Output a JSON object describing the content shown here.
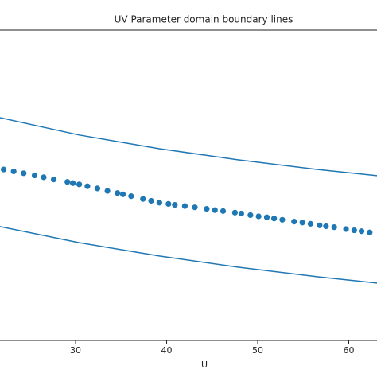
{
  "chart_data": {
    "type": "line",
    "title": "UV Parameter domain boundary lines",
    "xlabel": "U",
    "xlim": [
      21.7,
      63.1
    ],
    "ylim": [
      0,
      1
    ],
    "xticks": [
      30,
      40,
      50,
      60
    ],
    "grid": false,
    "series": [
      {
        "style": "line",
        "color": "#1f77b4",
        "x": [
          21.7,
          30.4,
          39.2,
          47.9,
          56.6,
          63.1
        ],
        "values": [
          0.718,
          0.662,
          0.618,
          0.582,
          0.551,
          0.531
        ]
      },
      {
        "style": "line",
        "color": "#1f77b4",
        "x": [
          21.7,
          30.4,
          39.2,
          47.9,
          56.6,
          63.1
        ],
        "values": [
          0.367,
          0.315,
          0.272,
          0.236,
          0.205,
          0.185
        ]
      },
      {
        "style": "marker",
        "color": "#1f77b4",
        "x": [
          22.1,
          23.2,
          24.3,
          25.5,
          26.5,
          27.6,
          29.1,
          29.7,
          30.4,
          31.3,
          32.4,
          33.5,
          34.6,
          35.2,
          36.1,
          37.4,
          38.3,
          39.2,
          40.2,
          40.9,
          42.0,
          43.1,
          44.4,
          45.3,
          46.2,
          47.5,
          48.2,
          49.2,
          50.1,
          51.0,
          51.8,
          52.7,
          54.0,
          54.9,
          55.8,
          56.8,
          57.5,
          58.4,
          59.7,
          60.6,
          61.4,
          62.3
        ],
        "values": [
          0.551,
          0.545,
          0.539,
          0.532,
          0.526,
          0.519,
          0.511,
          0.507,
          0.503,
          0.497,
          0.49,
          0.482,
          0.475,
          0.471,
          0.465,
          0.456,
          0.45,
          0.444,
          0.44,
          0.437,
          0.433,
          0.429,
          0.424,
          0.42,
          0.417,
          0.412,
          0.409,
          0.404,
          0.4,
          0.397,
          0.393,
          0.389,
          0.383,
          0.38,
          0.376,
          0.371,
          0.368,
          0.365,
          0.359,
          0.355,
          0.352,
          0.348
        ]
      }
    ]
  }
}
